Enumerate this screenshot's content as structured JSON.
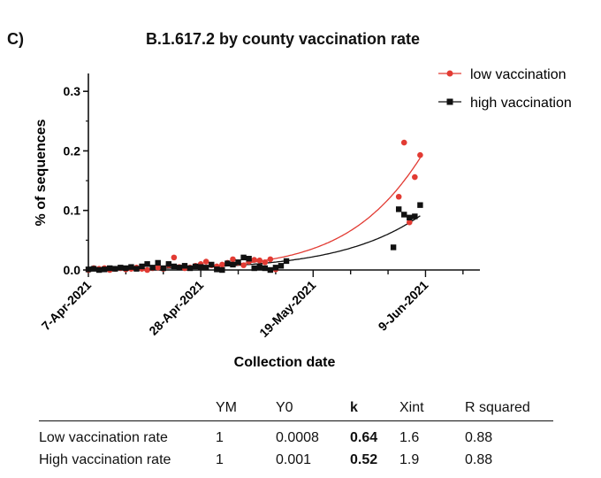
{
  "panel_label": "C)",
  "chart_data": {
    "type": "scatter",
    "title": "B.1.617.2 by county vaccination rate",
    "xlabel": "Collection date",
    "ylabel": "% of sequences",
    "x_ticks": [
      "7-Apr-2021",
      "28-Apr-2021",
      "19-May-2021",
      "9-Jun-2021"
    ],
    "x_range": [
      "2021-04-07",
      "2021-06-19"
    ],
    "ylim": [
      0,
      0.33
    ],
    "y_ticks": [
      0.0,
      0.1,
      0.2,
      0.3
    ],
    "legend_position": "top-right",
    "grid": false,
    "series": [
      {
        "name": "low vaccination",
        "color": "#e23b33",
        "marker": "circle",
        "points": [
          [
            "2021-04-07",
            0.0
          ],
          [
            "2021-04-08",
            0.003
          ],
          [
            "2021-04-09",
            0.002
          ],
          [
            "2021-04-10",
            0.003
          ],
          [
            "2021-04-11",
            0.0
          ],
          [
            "2021-04-12",
            0.002
          ],
          [
            "2021-04-13",
            0.003
          ],
          [
            "2021-04-14",
            0.001
          ],
          [
            "2021-04-15",
            0.002
          ],
          [
            "2021-04-16",
            0.004
          ],
          [
            "2021-04-17",
            0.002
          ],
          [
            "2021-04-18",
            0.0
          ],
          [
            "2021-04-19",
            0.003
          ],
          [
            "2021-04-20",
            0.004
          ],
          [
            "2021-04-21",
            0.002
          ],
          [
            "2021-04-22",
            0.008
          ],
          [
            "2021-04-23",
            0.021
          ],
          [
            "2021-04-24",
            0.005
          ],
          [
            "2021-04-25",
            0.003
          ],
          [
            "2021-04-26",
            0.004
          ],
          [
            "2021-04-27",
            0.007
          ],
          [
            "2021-04-28",
            0.01
          ],
          [
            "2021-04-29",
            0.014
          ],
          [
            "2021-04-30",
            0.008
          ],
          [
            "2021-05-01",
            0.006
          ],
          [
            "2021-05-02",
            0.009
          ],
          [
            "2021-05-03",
            0.012
          ],
          [
            "2021-05-04",
            0.018
          ],
          [
            "2021-05-05",
            0.012
          ],
          [
            "2021-05-06",
            0.008
          ],
          [
            "2021-05-07",
            0.014
          ],
          [
            "2021-05-08",
            0.017
          ],
          [
            "2021-05-09",
            0.016
          ],
          [
            "2021-05-10",
            0.013
          ],
          [
            "2021-05-11",
            0.018
          ],
          [
            "2021-05-12",
            0.001
          ],
          [
            "2021-06-04",
            0.123
          ],
          [
            "2021-06-05",
            0.214
          ],
          [
            "2021-06-06",
            0.08
          ],
          [
            "2021-06-07",
            0.156
          ],
          [
            "2021-06-08",
            0.193
          ]
        ],
        "fit": {
          "Y0": 0.0008,
          "k": 0.64,
          "YM": 1
        }
      },
      {
        "name": "high vaccination",
        "color": "#111111",
        "marker": "square",
        "points": [
          [
            "2021-04-07",
            0.001
          ],
          [
            "2021-04-08",
            0.002
          ],
          [
            "2021-04-09",
            0.0
          ],
          [
            "2021-04-10",
            0.001
          ],
          [
            "2021-04-11",
            0.003
          ],
          [
            "2021-04-12",
            0.002
          ],
          [
            "2021-04-13",
            0.004
          ],
          [
            "2021-04-14",
            0.003
          ],
          [
            "2021-04-15",
            0.005
          ],
          [
            "2021-04-16",
            0.002
          ],
          [
            "2021-04-17",
            0.006
          ],
          [
            "2021-04-18",
            0.01
          ],
          [
            "2021-04-19",
            0.004
          ],
          [
            "2021-04-20",
            0.012
          ],
          [
            "2021-04-21",
            0.003
          ],
          [
            "2021-04-22",
            0.01
          ],
          [
            "2021-04-23",
            0.006
          ],
          [
            "2021-04-24",
            0.004
          ],
          [
            "2021-04-25",
            0.007
          ],
          [
            "2021-04-26",
            0.003
          ],
          [
            "2021-04-27",
            0.006
          ],
          [
            "2021-04-28",
            0.005
          ],
          [
            "2021-04-29",
            0.004
          ],
          [
            "2021-04-30",
            0.009
          ],
          [
            "2021-05-01",
            0.001
          ],
          [
            "2021-05-02",
            0.0
          ],
          [
            "2021-05-03",
            0.011
          ],
          [
            "2021-05-04",
            0.009
          ],
          [
            "2021-05-05",
            0.013
          ],
          [
            "2021-05-06",
            0.021
          ],
          [
            "2021-05-07",
            0.019
          ],
          [
            "2021-05-08",
            0.003
          ],
          [
            "2021-05-09",
            0.005
          ],
          [
            "2021-05-10",
            0.003
          ],
          [
            "2021-05-11",
            0.0
          ],
          [
            "2021-05-12",
            0.004
          ],
          [
            "2021-05-13",
            0.007
          ],
          [
            "2021-05-14",
            0.015
          ],
          [
            "2021-06-03",
            0.038
          ],
          [
            "2021-06-04",
            0.102
          ],
          [
            "2021-06-05",
            0.093
          ],
          [
            "2021-06-06",
            0.088
          ],
          [
            "2021-06-07",
            0.09
          ],
          [
            "2021-06-08",
            0.109
          ]
        ],
        "fit": {
          "Y0": 0.001,
          "k": 0.52,
          "YM": 1
        }
      }
    ]
  },
  "table": {
    "headers": [
      "",
      "YM",
      "Y0",
      "k",
      "Xint",
      "R squared"
    ],
    "rows": [
      [
        "Low vaccination rate",
        "1",
        "0.0008",
        "0.64",
        "1.6",
        "0.88"
      ],
      [
        "High vaccination rate",
        "1",
        "0.001",
        "0.52",
        "1.9",
        "0.88"
      ]
    ]
  }
}
